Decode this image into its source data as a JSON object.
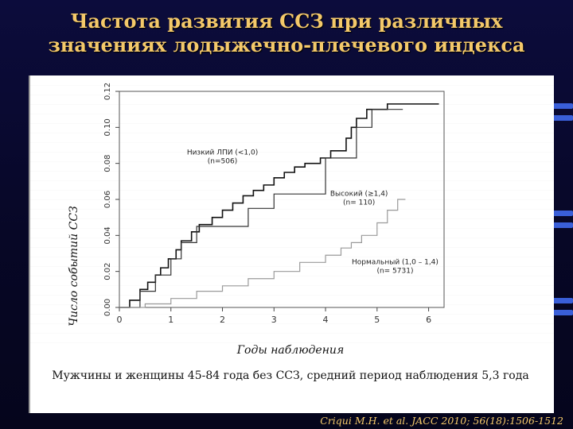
{
  "slide": {
    "title_line1": "Частота развития ССЗ при различных",
    "title_line2": "значениях лодыжечно-плечевого индекса",
    "caption": "Мужчины и женщины 45-84 года без ССЗ, средний период наблюдения 5,3 года",
    "citation": "Criqui M.H. et al. JACC 2010; 56(18):1506-1512",
    "accent_color": "#f4c96a",
    "background_color": "#0a0a32"
  },
  "chart_data": {
    "type": "line",
    "title": "",
    "xlabel": "Годы наблюдения",
    "ylabel": "Число событий ССЗ",
    "xlim": [
      0,
      6.3
    ],
    "ylim": [
      0,
      0.12
    ],
    "xticks": [
      "0",
      "1",
      "2",
      "3",
      "4",
      "5",
      "6"
    ],
    "yticks": [
      "0.00",
      "0.02",
      "0.04",
      "0.06",
      "0.08",
      "0.10",
      "0.12"
    ],
    "grid": false,
    "series": [
      {
        "name": "Низкий ЛПИ (<1,0)",
        "name2": "(n=506)",
        "label_at": [
          2.0,
          0.085
        ],
        "step": true,
        "color": "#111111",
        "points": [
          [
            0,
            0
          ],
          [
            0.2,
            0.004
          ],
          [
            0.4,
            0.01
          ],
          [
            0.55,
            0.014
          ],
          [
            0.7,
            0.018
          ],
          [
            0.8,
            0.022
          ],
          [
            0.95,
            0.027
          ],
          [
            1.1,
            0.032
          ],
          [
            1.2,
            0.037
          ],
          [
            1.4,
            0.042
          ],
          [
            1.55,
            0.046
          ],
          [
            1.8,
            0.05
          ],
          [
            2.0,
            0.054
          ],
          [
            2.2,
            0.058
          ],
          [
            2.4,
            0.062
          ],
          [
            2.6,
            0.065
          ],
          [
            2.8,
            0.068
          ],
          [
            3.0,
            0.072
          ],
          [
            3.2,
            0.075
          ],
          [
            3.4,
            0.078
          ],
          [
            3.6,
            0.08
          ],
          [
            3.9,
            0.083
          ],
          [
            4.1,
            0.087
          ],
          [
            4.4,
            0.094
          ],
          [
            4.5,
            0.1
          ],
          [
            4.6,
            0.105
          ],
          [
            4.8,
            0.11
          ],
          [
            5.2,
            0.113
          ],
          [
            6.2,
            0.113
          ]
        ]
      },
      {
        "name": "Высокий (≥1,4)",
        "name2": "(n= 110)",
        "label_at": [
          4.65,
          0.062
        ],
        "step": true,
        "color": "#333333",
        "points": [
          [
            0,
            0
          ],
          [
            0.4,
            0.009
          ],
          [
            0.7,
            0.018
          ],
          [
            1.0,
            0.027
          ],
          [
            1.2,
            0.036
          ],
          [
            1.5,
            0.045
          ],
          [
            2.5,
            0.055
          ],
          [
            3.0,
            0.063
          ],
          [
            4.0,
            0.083
          ],
          [
            4.6,
            0.1
          ],
          [
            4.9,
            0.11
          ],
          [
            5.5,
            0.11
          ]
        ]
      },
      {
        "name": "Нормальный (1,0 – 1,4)",
        "name2": "(n= 5731)",
        "label_at": [
          5.35,
          0.024
        ],
        "step": true,
        "color": "#9a9a9a",
        "points": [
          [
            0,
            0
          ],
          [
            0.5,
            0.002
          ],
          [
            1.0,
            0.005
          ],
          [
            1.5,
            0.009
          ],
          [
            2.0,
            0.012
          ],
          [
            2.5,
            0.016
          ],
          [
            3.0,
            0.02
          ],
          [
            3.5,
            0.025
          ],
          [
            4.0,
            0.029
          ],
          [
            4.3,
            0.033
          ],
          [
            4.5,
            0.036
          ],
          [
            4.7,
            0.04
          ],
          [
            5.0,
            0.047
          ],
          [
            5.2,
            0.054
          ],
          [
            5.4,
            0.06
          ],
          [
            5.55,
            0.06
          ]
        ]
      }
    ]
  }
}
